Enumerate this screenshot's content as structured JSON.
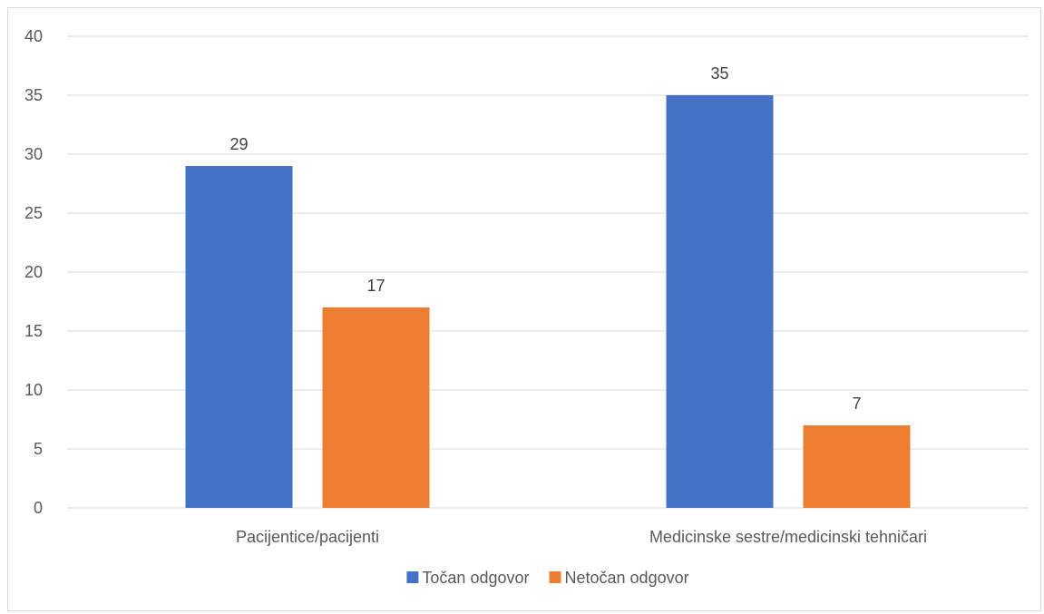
{
  "chart_data": {
    "type": "bar",
    "categories": [
      "Pacijentice/pacijenti",
      "Medicinske sestre/medicinski tehničari"
    ],
    "series": [
      {
        "name": "Točan odgovor",
        "values": [
          29,
          35
        ],
        "color": "#4472C4"
      },
      {
        "name": "Netočan odgovor",
        "values": [
          17,
          7
        ],
        "color": "#ED7D31"
      }
    ],
    "ylim": [
      0,
      40
    ],
    "yticks": [
      0,
      5,
      10,
      15,
      20,
      25,
      30,
      35,
      40
    ],
    "grid": true,
    "legend": "bottom-center",
    "title": "",
    "xlabel": "",
    "ylabel": ""
  }
}
